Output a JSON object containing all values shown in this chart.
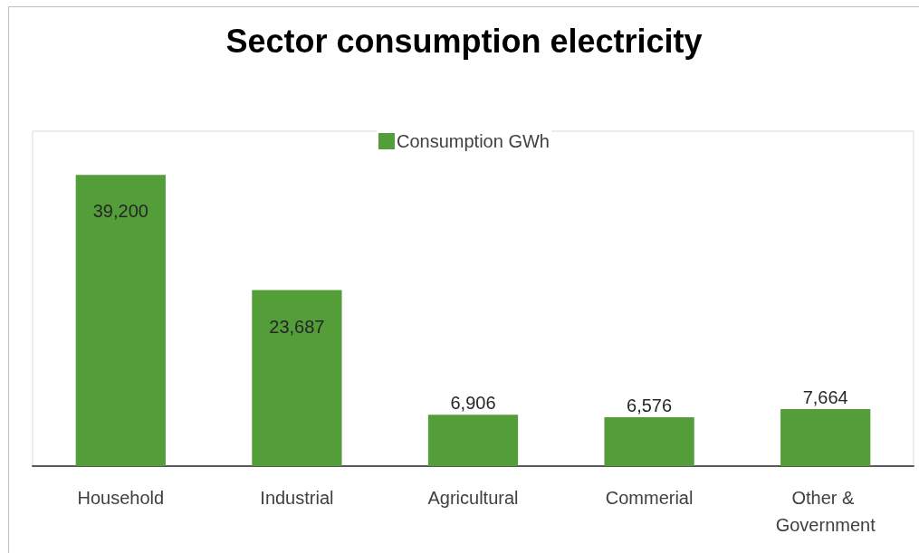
{
  "chart_data": {
    "type": "bar",
    "title": "Sector consumption electricity",
    "categories": [
      "Household",
      "Industrial",
      "Agricultural",
      "Commerial",
      "Other & Government"
    ],
    "series": [
      {
        "name": "Consumption GWh",
        "color": "#549e39",
        "values": [
          39200,
          23687,
          6906,
          6576,
          7664
        ],
        "value_labels": [
          "39,200",
          "23,687",
          "6,906",
          "6,576",
          "7,664"
        ]
      }
    ],
    "legend": "top",
    "grid": false,
    "tick_labels": "x"
  }
}
